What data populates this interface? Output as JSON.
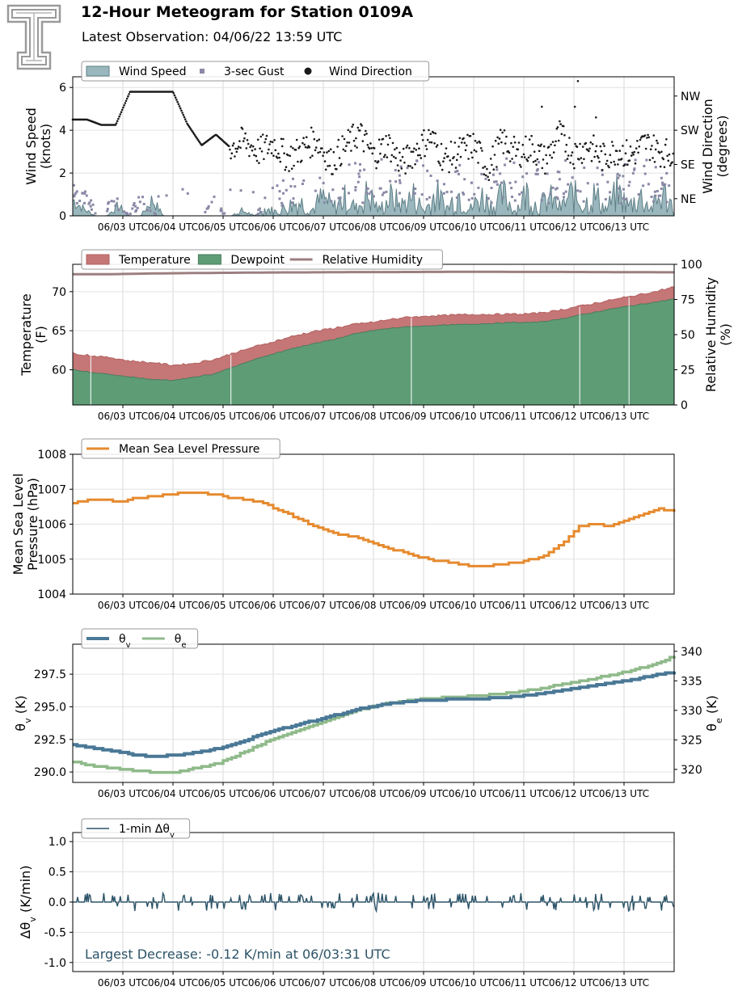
{
  "header": {
    "title": "12-Hour Meteogram for Station 0109A",
    "subtitle": "Latest Observation: 04/06/22 13:59 UTC",
    "logo_icon": "texas-tech-double-t-logo"
  },
  "colors": {
    "wind_fill": "#9ab7bd",
    "wind_line": "#5e7f87",
    "gust": "#8a88a6",
    "direction": "#1a1a1a",
    "temperature": "#c57676",
    "dewpoint": "#5e9c76",
    "rh": "#9c7f80",
    "pressure": "#e68a2e",
    "theta_v": "#4a7896",
    "theta_e": "#8fba8a",
    "dtheta": "#2d5468",
    "annotation": "#2d5468"
  },
  "shared": {
    "x_ticks": [
      "06/03 UTC",
      "06/04 UTC",
      "06/05 UTC",
      "06/06 UTC",
      "06/07 UTC",
      "06/08 UTC",
      "06/09 UTC",
      "06/10 UTC",
      "06/11 UTC",
      "06/12 UTC",
      "06/13 UTC"
    ]
  },
  "chart_data": [
    {
      "type": "area",
      "panel": "wind",
      "ylabel": "Wind Speed\n(knots)",
      "ylabel2": "Wind Direction\n(degrees)",
      "ylim": [
        0,
        6.5
      ],
      "y_ticks": [
        0,
        2,
        4,
        6
      ],
      "y2_ticks": [
        "NE",
        "SE",
        "SW",
        "NW"
      ],
      "legend": [
        "Wind Speed",
        "3-sec Gust",
        "Wind Direction"
      ],
      "legend_placement": "top-left",
      "series": [
        {
          "name": "Wind Speed",
          "kind": "area",
          "values": [
            1.0,
            0.4,
            0.0,
            0.0,
            0.6,
            0.0,
            0.0,
            1.0,
            0.0,
            0.0,
            0.0,
            0.0,
            0.0,
            0.0,
            0.0,
            0.4,
            0.0,
            0.6,
            0.3,
            0.8,
            1.2,
            0.4,
            1.5,
            0.7,
            1.4,
            0.6,
            1.8,
            0.5,
            1.5,
            0.9,
            1.6,
            0.4,
            1.8,
            0.6,
            1.9,
            0.5,
            1.6,
            0.8,
            1.7,
            0.4,
            1.9,
            0.7,
            1.5,
            0.6,
            1.8,
            0.9,
            1.7,
            0.5,
            1.9,
            0.8,
            1.6,
            0.6,
            1.8,
            0.7
          ]
        },
        {
          "name": "3-sec Gust",
          "kind": "points",
          "values": [
            1.4,
            0.9,
            0.0,
            1.0,
            0.0,
            1.3,
            0.0,
            0.0,
            0.0,
            0.0,
            0.9,
            0.0,
            0.0,
            0.0,
            1.0,
            1.5,
            1.7,
            1.2,
            2.0,
            1.8,
            2.2,
            1.9,
            2.4,
            2.0,
            2.2,
            2.3,
            1.8,
            2.2,
            2.0,
            2.1,
            1.9,
            2.4,
            2.0,
            2.3,
            1.8,
            2.2,
            2.1,
            2.0,
            2.3,
            1.9,
            2.2,
            2.4,
            2.0,
            2.1
          ]
        },
        {
          "name": "Wind Direction",
          "kind": "scatter",
          "values": [
            4.5,
            4.5,
            4.25,
            4.25,
            5.8,
            5.8,
            5.8,
            5.8,
            4.3,
            3.3,
            3.8,
            3.2,
            3.5,
            3.0,
            3.4,
            2.7,
            3.1,
            3.6,
            2.5,
            3.2,
            3.9,
            2.8,
            3.4,
            2.4,
            3.1,
            3.7,
            2.6,
            3.0,
            3.3,
            2.2,
            3.5,
            2.9,
            3.2,
            2.6,
            3.8,
            2.9,
            3.3,
            2.7,
            3.1,
            2.8,
            3.4,
            3.0,
            2.9
          ]
        }
      ]
    },
    {
      "type": "area",
      "panel": "temperature",
      "ylabel": "Temperature\n(F)",
      "ylabel2": "Relative Humidity\n(%)",
      "ylim": [
        55.5,
        73.5
      ],
      "y_ticks": [
        60,
        65,
        70
      ],
      "y2lim": [
        0,
        100
      ],
      "y2_ticks": [
        0,
        25,
        50,
        75,
        100
      ],
      "legend": [
        "Temperature",
        "Dewpoint",
        "Relative Humidity"
      ],
      "legend_placement": "top-left",
      "series": [
        {
          "name": "Temperature",
          "kind": "area",
          "values": [
            62.0,
            61.7,
            61.4,
            61.0,
            60.8,
            60.5,
            60.7,
            61.2,
            62.0,
            62.8,
            63.5,
            64.2,
            64.8,
            65.2,
            65.7,
            66.0,
            66.4,
            66.7,
            66.8,
            66.9,
            67.0,
            67.0,
            67.0,
            67.1,
            67.4,
            67.9,
            68.4,
            68.9,
            69.4,
            69.9,
            70.5
          ]
        },
        {
          "name": "Dewpoint",
          "kind": "area",
          "values": [
            60.0,
            59.6,
            59.3,
            59.0,
            58.7,
            58.6,
            59.0,
            59.4,
            60.3,
            61.2,
            62.0,
            62.7,
            63.3,
            63.8,
            64.5,
            65.0,
            65.3,
            65.5,
            65.6,
            65.7,
            65.8,
            65.9,
            66.0,
            66.0,
            66.3,
            66.8,
            67.3,
            67.8,
            68.2,
            68.6,
            69.0
          ]
        },
        {
          "name": "Relative Humidity",
          "kind": "line",
          "values": [
            93.0,
            93.0,
            93.5,
            93.8,
            94.0,
            94.2,
            94.3,
            94.5,
            94.5,
            94.6,
            94.7,
            94.6,
            94.6,
            94.5,
            94.4,
            94.3
          ]
        }
      ]
    },
    {
      "type": "line",
      "panel": "pressure",
      "ylabel": "Mean Sea Level\nPressure (hPa)",
      "ylim": [
        1004,
        1008
      ],
      "y_ticks": [
        1004,
        1005,
        1006,
        1007,
        1008
      ],
      "legend": [
        "Mean Sea Level Pressure"
      ],
      "legend_placement": "top-left",
      "series": [
        {
          "name": "Mean Sea Level Pressure",
          "values": [
            1006.6,
            1006.7,
            1006.7,
            1006.65,
            1006.75,
            1006.8,
            1006.85,
            1006.9,
            1006.9,
            1006.85,
            1006.75,
            1006.7,
            1006.6,
            1006.4,
            1006.2,
            1006.0,
            1005.8,
            1005.7,
            1005.6,
            1005.45,
            1005.3,
            1005.2,
            1005.05,
            1004.95,
            1004.9,
            1004.82,
            1004.8,
            1004.85,
            1004.9,
            1005.0,
            1005.15,
            1005.5,
            1005.95,
            1006.0,
            1005.95,
            1006.15,
            1006.3,
            1006.45,
            1006.35
          ]
        }
      ]
    },
    {
      "type": "line",
      "panel": "theta",
      "ylabel": "θv (K)",
      "ylabel2": "θe (K)",
      "ylim": [
        289.2,
        299.8
      ],
      "y_ticks": [
        290.0,
        292.5,
        295.0,
        297.5
      ],
      "y2lim": [
        317.8,
        341.2
      ],
      "y2_ticks": [
        320,
        325,
        330,
        335,
        340
      ],
      "legend": [
        "θv",
        "θe"
      ],
      "legend_placement": "top-left",
      "series": [
        {
          "name": "θv",
          "values": [
            292.1,
            291.8,
            291.6,
            291.3,
            291.2,
            291.3,
            291.5,
            291.8,
            292.3,
            292.8,
            293.3,
            293.7,
            294.1,
            294.5,
            294.9,
            295.2,
            295.4,
            295.5,
            295.55,
            295.6,
            295.65,
            295.75,
            295.9,
            296.1,
            296.35,
            296.6,
            296.85,
            297.1,
            297.4,
            297.7
          ]
        },
        {
          "name": "θe",
          "values": [
            321.3,
            320.6,
            320.2,
            319.8,
            319.5,
            319.6,
            320.3,
            321.0,
            322.5,
            324.2,
            325.6,
            326.8,
            328.0,
            329.3,
            330.3,
            331.1,
            331.6,
            332.0,
            332.2,
            332.4,
            332.6,
            332.9,
            333.4,
            334.0,
            334.7,
            335.3,
            336.0,
            336.8,
            337.8,
            339.2
          ]
        }
      ]
    },
    {
      "type": "line",
      "panel": "dtheta",
      "ylabel": "Δθv (K/min)",
      "ylim": [
        -1.15,
        1.15
      ],
      "y_ticks": [
        -1.0,
        -0.5,
        0.0,
        0.5,
        1.0
      ],
      "legend": [
        "1-min Δθv"
      ],
      "legend_placement": "top-left",
      "annotation": "Largest Decrease: -0.12 K/min at 06/03:31 UTC",
      "series": [
        {
          "name": "1-min Δθv",
          "values": [
            0.0,
            0.1,
            -0.12,
            0.0,
            0.1,
            0.0,
            -0.1,
            0.1,
            0.0,
            0.1,
            -0.1,
            0.1,
            0.0,
            0.1,
            0.1,
            -0.1,
            0.1,
            0.0,
            0.1,
            -0.1,
            0.1,
            0.1,
            0.0,
            -0.1,
            0.1,
            0.0,
            0.1,
            -0.1,
            0.1,
            0.0,
            0.1,
            0.1,
            -0.1,
            0.1,
            0.0,
            0.1,
            -0.1,
            0.1,
            0.0,
            0.1,
            0.0
          ]
        }
      ]
    }
  ]
}
